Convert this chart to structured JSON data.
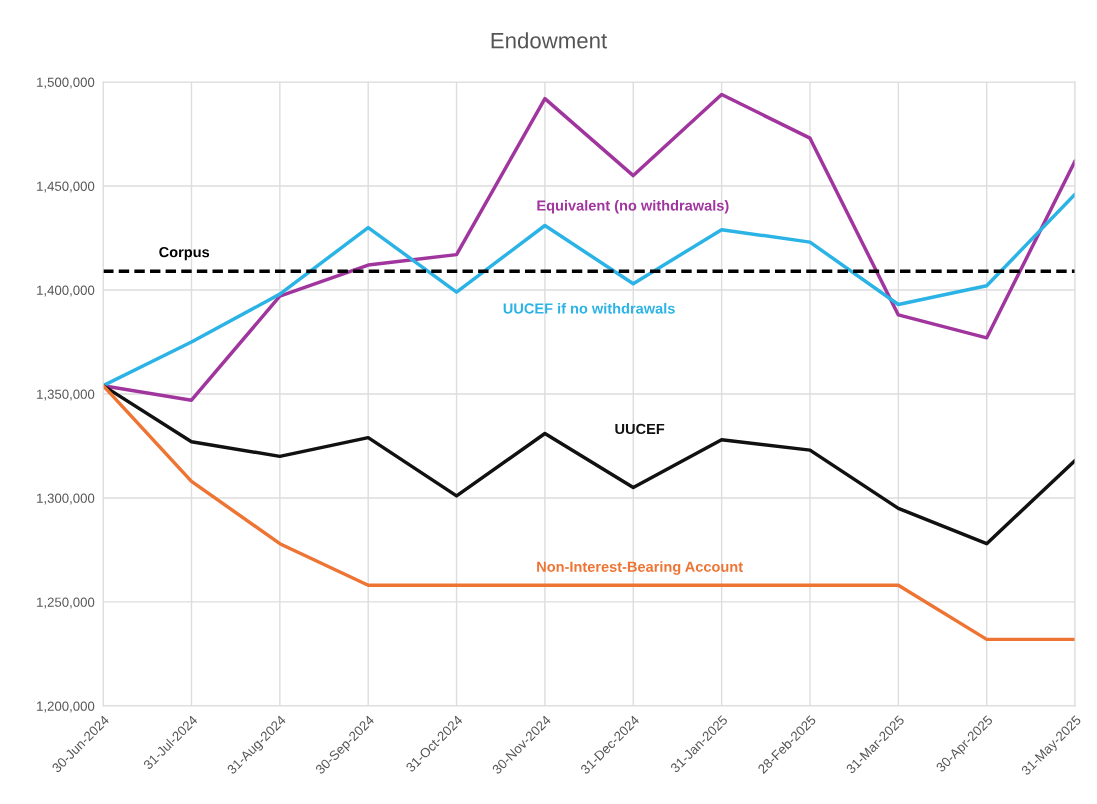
{
  "chart_data": {
    "type": "line",
    "title": "Endowment",
    "categories": [
      "30-Jun-2024",
      "31-Jul-2024",
      "31-Aug-2024",
      "30-Sep-2024",
      "31-Oct-2024",
      "30-Nov-2024",
      "31-Dec-2024",
      "31-Jan-2025",
      "28-Feb-2025",
      "31-Mar-2025",
      "30-Apr-2025",
      "31-May-2025"
    ],
    "series": [
      {
        "name": "Equivalent (no withdrawals)",
        "color": "#a0359e",
        "values": [
          1354000,
          1347000,
          1397000,
          1412000,
          1417000,
          1492000,
          1455000,
          1494000,
          1473000,
          1388000,
          1377000,
          1462000
        ]
      },
      {
        "name": "UUCEF if no withdrawals",
        "color": "#2bb3e6",
        "values": [
          1354000,
          1375000,
          1398000,
          1430000,
          1399000,
          1431000,
          1403000,
          1429000,
          1423000,
          1393000,
          1402000,
          1446000
        ]
      },
      {
        "name": "UUCEF",
        "color": "#111111",
        "values": [
          1354000,
          1327000,
          1320000,
          1329000,
          1301000,
          1331000,
          1305000,
          1328000,
          1323000,
          1295000,
          1278000,
          1318000
        ]
      },
      {
        "name": "Non-Interest-Bearing Account",
        "color": "#ee7434",
        "values": [
          1354000,
          1308000,
          1278000,
          1258000,
          1258000,
          1258000,
          1258000,
          1258000,
          1258000,
          1258000,
          1232000,
          1232000
        ]
      }
    ],
    "ref_lines": [
      {
        "axis": "y",
        "value": 1409000,
        "label": "Corpus",
        "color": "#000000",
        "line_style": "dashed"
      }
    ],
    "ylim": [
      1200000,
      1500000
    ],
    "yticks": [
      {
        "value": 1200000,
        "label": "1,200,000"
      },
      {
        "value": 1250000,
        "label": "1,250,000"
      },
      {
        "value": 1300000,
        "label": "1,300,000"
      },
      {
        "value": 1350000,
        "label": "1,350,000"
      },
      {
        "value": 1400000,
        "label": "1,400,000"
      },
      {
        "value": 1450000,
        "label": "1,450,000"
      },
      {
        "value": 1500000,
        "label": "1,500,000"
      }
    ],
    "grid": true,
    "legend": false,
    "marker": "none",
    "line_style": "solid"
  }
}
